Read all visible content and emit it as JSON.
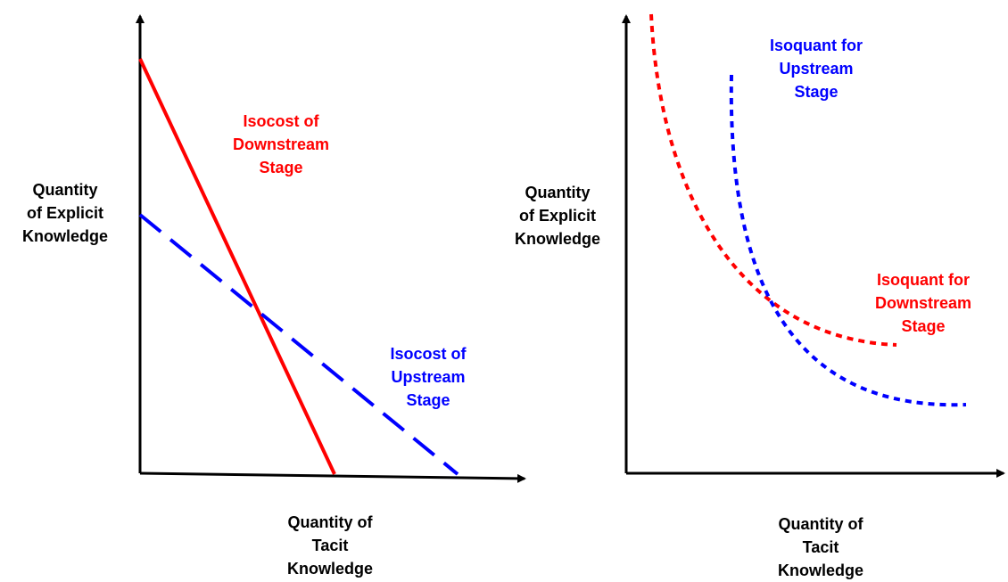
{
  "colors": {
    "axis": "#000000",
    "downstream": "#ff0000",
    "upstream": "#0000ff"
  },
  "left_panel": {
    "y_axis_label": [
      "Quantity",
      "of Explicit",
      "Knowledge"
    ],
    "x_axis_label": [
      "Quantity of",
      "Tacit",
      "Knowledge"
    ],
    "downstream_label": [
      "Isocost of",
      "Downstream",
      "Stage"
    ],
    "upstream_label": [
      "Isocost of",
      "Upstream",
      "Stage"
    ]
  },
  "right_panel": {
    "y_axis_label": [
      "Quantity",
      "of Explicit",
      "Knowledge"
    ],
    "x_axis_label": [
      "Quantity of",
      "Tacit",
      "Knowledge"
    ],
    "upstream_label": [
      "Isoquant for",
      "Upstream",
      "Stage"
    ],
    "downstream_label": [
      "Isoquant for",
      "Downstream",
      "Stage"
    ]
  }
}
